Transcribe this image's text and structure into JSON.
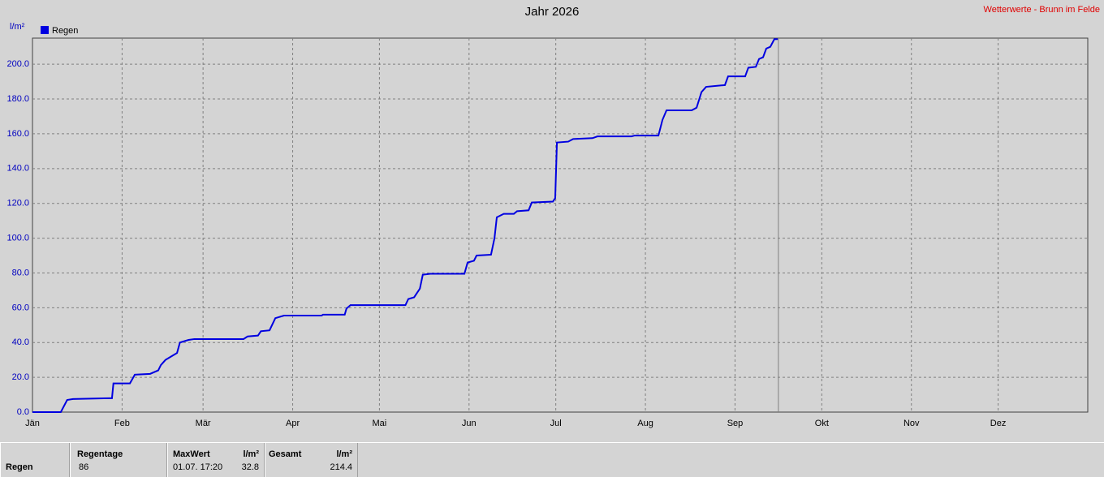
{
  "chart_data": {
    "type": "line",
    "title": "Jahr 2026",
    "corner_text": "Wetterwerte - Brunn im Felde",
    "y_label": "l/m²",
    "xlim": [
      0,
      365
    ],
    "ylim": [
      0,
      215
    ],
    "xticks": [
      {
        "value": 0,
        "label": "Jän"
      },
      {
        "value": 31,
        "label": "Feb"
      },
      {
        "value": 59,
        "label": "Mär"
      },
      {
        "value": 90,
        "label": "Apr"
      },
      {
        "value": 120,
        "label": "Mai"
      },
      {
        "value": 151,
        "label": "Jun"
      },
      {
        "value": 181,
        "label": "Jul"
      },
      {
        "value": 212,
        "label": "Aug"
      },
      {
        "value": 243,
        "label": "Sep"
      },
      {
        "value": 273,
        "label": "Okt"
      },
      {
        "value": 304,
        "label": "Nov"
      },
      {
        "value": 334,
        "label": "Dez"
      }
    ],
    "yticks": [
      {
        "value": 0,
        "label": "0.0"
      },
      {
        "value": 20,
        "label": "20.0"
      },
      {
        "value": 40,
        "label": "40.0"
      },
      {
        "value": 60,
        "label": "60.0"
      },
      {
        "value": 80,
        "label": "80.0"
      },
      {
        "value": 100,
        "label": "100.0"
      },
      {
        "value": 120,
        "label": "120.0"
      },
      {
        "value": 140,
        "label": "140.0"
      },
      {
        "value": 160,
        "label": "160.0"
      },
      {
        "value": 180,
        "label": "180.0"
      },
      {
        "value": 200,
        "label": "200.0"
      }
    ],
    "grid": true,
    "xline": 258,
    "series": [
      {
        "name": "Regen",
        "color": "#0000e0",
        "x": [
          0,
          9.8,
          12,
          14,
          26.7,
          27.5,
          28,
          33.7,
          35.4,
          40.7,
          43.5,
          44.4,
          46,
          48,
          50,
          51,
          54,
          56,
          73,
          74.4,
          78,
          79,
          82,
          84,
          87,
          100,
          100.5,
          108,
          108.6,
          110,
          129,
          130,
          132,
          134,
          135,
          137.6,
          149.4,
          150.5,
          152.7,
          153.6,
          158.6,
          159.8,
          160.6,
          163,
          166.5,
          167.6,
          171.6,
          172.7,
          180,
          180.8,
          181.4,
          185.3,
          187,
          193.7,
          195.4,
          207.2,
          208.3,
          216.5,
          217.9,
          219.3,
          228,
          229.7,
          231.4,
          233,
          239.5,
          240.6,
          246.5,
          247.6,
          250.2,
          251.3,
          252.7,
          253.8,
          255.2,
          256.6,
          257.8
        ],
        "values": [
          0,
          0,
          7,
          7.5,
          8,
          8,
          16.5,
          16.5,
          21.5,
          22,
          24,
          27,
          30,
          32,
          34,
          40,
          41.5,
          42,
          42,
          43.5,
          44,
          46.5,
          47,
          54,
          55.5,
          55.5,
          56,
          56,
          59.5,
          61.5,
          61.5,
          65,
          66,
          71,
          79,
          79.5,
          79.5,
          86,
          87,
          90,
          90.5,
          100,
          112,
          114,
          114,
          115.5,
          116,
          120.5,
          121,
          123,
          155,
          155.5,
          157,
          157.5,
          158.5,
          158.5,
          159,
          159,
          168,
          173.5,
          173.5,
          175,
          184,
          187,
          188,
          193,
          193,
          198,
          198.5,
          203,
          204,
          209,
          210,
          214.4,
          214.4
        ]
      }
    ]
  },
  "summary": {
    "row_label": "Regen",
    "col1_head": "Regentage",
    "col1_value": "86",
    "col2_head": "MaxWert",
    "col2_unit": "l/m²",
    "col2_date": "01.07. 17:20",
    "col2_value": "32.8",
    "col3_head": "Gesamt",
    "col3_unit": "l/m²",
    "col3_value": "214.4"
  }
}
